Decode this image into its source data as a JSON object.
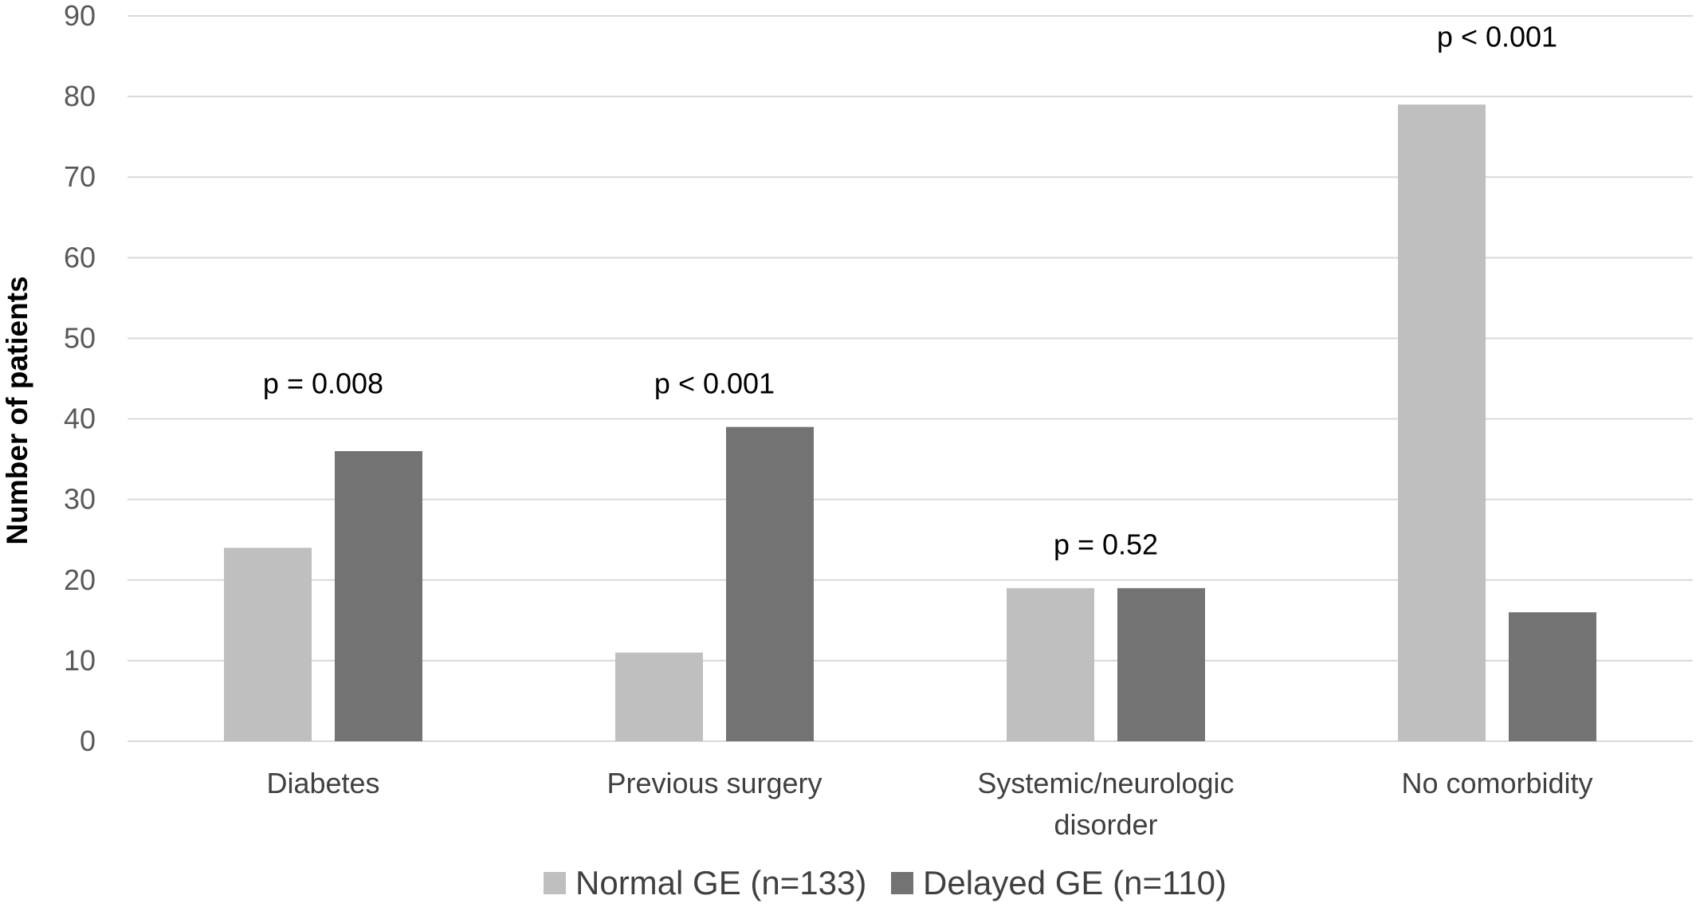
{
  "chart_data": {
    "type": "bar",
    "categories": [
      [
        "Diabetes"
      ],
      [
        "Previous surgery"
      ],
      [
        "Systemic/neurologic",
        "disorder"
      ],
      [
        "No comorbidity"
      ]
    ],
    "series": [
      {
        "name": "Normal GE (n=133)",
        "values": [
          24,
          11,
          19,
          79
        ],
        "color": "#bfbfbf"
      },
      {
        "name": "Delayed GE (n=110)",
        "values": [
          36,
          39,
          19,
          16
        ],
        "color": "#737373"
      }
    ],
    "annotations": [
      "p = 0.008",
      "p < 0.001",
      "p = 0.52",
      "p < 0.001"
    ],
    "annotation_anchor_values": [
      42,
      42,
      22,
      85
    ],
    "title": "",
    "xlabel": "",
    "ylabel": "Number of patients",
    "ylim": [
      0,
      90
    ],
    "yticks": [
      0,
      10,
      20,
      30,
      40,
      50,
      60,
      70,
      80,
      90
    ],
    "grid": true,
    "legend_position": "bottom",
    "gridline_color": "#d9d9d9"
  }
}
